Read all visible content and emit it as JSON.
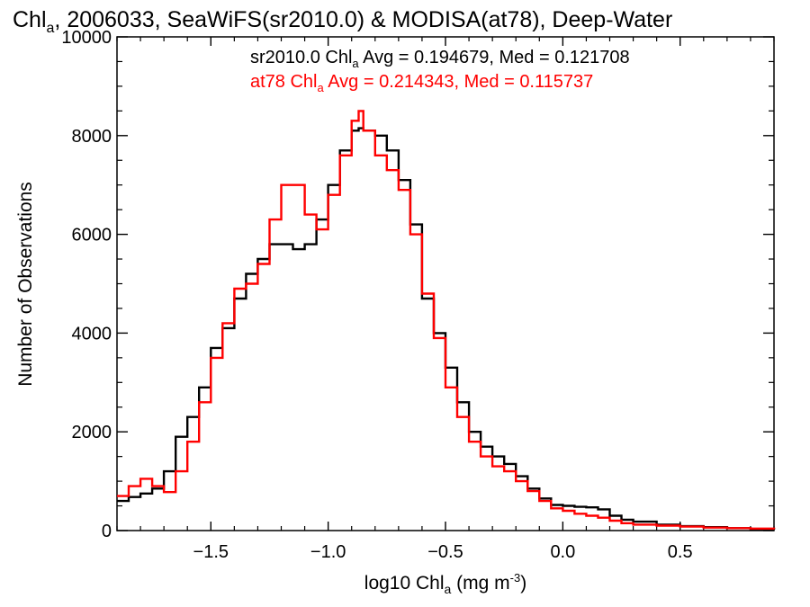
{
  "chart_data": {
    "type": "line",
    "title": {
      "prefix": "Chl",
      "sub": "a",
      "rest": ", 2006033, SeaWiFS(sr2010.0) & MODISA(at78), Deep-Water"
    },
    "xlabel": {
      "prefix": "log10 Chl",
      "sub": "a",
      "mid": " (mg m",
      "sup": "-3",
      "end": ")"
    },
    "ylabel": "Number of Observations",
    "xlim": [
      -1.9,
      0.9
    ],
    "ylim": [
      0,
      10000
    ],
    "x_ticks": [
      -1.5,
      -1.0,
      -0.5,
      0.0,
      0.5
    ],
    "x_tick_labels": [
      "−1.5",
      "−1.0",
      "−0.5",
      "0.0",
      "0.5"
    ],
    "y_ticks": [
      0,
      2000,
      4000,
      6000,
      8000,
      10000
    ],
    "y_tick_labels": [
      "0",
      "2000",
      "4000",
      "6000",
      "8000",
      "10000"
    ],
    "grid": false,
    "annotations": [
      {
        "prefix": "sr2010.0 Chl",
        "sub": "a",
        "rest": " Avg = 0.194679, Med = 0.121708",
        "color": "#000000"
      },
      {
        "prefix": "at78 Chl",
        "sub": "a",
        "rest": " Avg = 0.214343, Med = 0.115737",
        "color": "#ff0000"
      }
    ],
    "series": [
      {
        "color": "#000000",
        "x": [
          -1.9,
          -1.85,
          -1.8,
          -1.75,
          -1.7,
          -1.65,
          -1.6,
          -1.55,
          -1.5,
          -1.45,
          -1.4,
          -1.35,
          -1.3,
          -1.25,
          -1.2,
          -1.15,
          -1.1,
          -1.05,
          -1.0,
          -0.95,
          -0.9,
          -0.87,
          -0.85,
          -0.8,
          -0.75,
          -0.7,
          -0.65,
          -0.6,
          -0.55,
          -0.5,
          -0.45,
          -0.4,
          -0.35,
          -0.3,
          -0.25,
          -0.2,
          -0.15,
          -0.1,
          -0.05,
          0.0,
          0.05,
          0.1,
          0.15,
          0.2,
          0.25,
          0.3,
          0.4,
          0.5,
          0.6,
          0.7,
          0.8,
          0.9
        ],
        "y": [
          600,
          680,
          750,
          850,
          1200,
          1900,
          2300,
          2900,
          3700,
          4100,
          4700,
          5200,
          5500,
          5800,
          5800,
          5700,
          5800,
          6300,
          7000,
          7700,
          8100,
          8150,
          8100,
          8000,
          7700,
          7100,
          6200,
          4700,
          4000,
          3300,
          2600,
          2000,
          1700,
          1500,
          1350,
          1100,
          850,
          650,
          520,
          500,
          480,
          470,
          430,
          300,
          220,
          180,
          120,
          90,
          70,
          50,
          30,
          20
        ]
      },
      {
        "color": "#ff0000",
        "x": [
          -1.9,
          -1.85,
          -1.8,
          -1.75,
          -1.7,
          -1.65,
          -1.6,
          -1.55,
          -1.5,
          -1.45,
          -1.4,
          -1.35,
          -1.3,
          -1.25,
          -1.2,
          -1.15,
          -1.1,
          -1.05,
          -1.0,
          -0.95,
          -0.9,
          -0.87,
          -0.85,
          -0.8,
          -0.75,
          -0.7,
          -0.65,
          -0.6,
          -0.55,
          -0.5,
          -0.45,
          -0.4,
          -0.35,
          -0.3,
          -0.25,
          -0.2,
          -0.15,
          -0.1,
          -0.05,
          0.0,
          0.05,
          0.1,
          0.15,
          0.2,
          0.25,
          0.3,
          0.4,
          0.5,
          0.6,
          0.7,
          0.8,
          0.9
        ],
        "y": [
          700,
          900,
          1050,
          900,
          780,
          1200,
          1800,
          2600,
          3500,
          4200,
          4900,
          5000,
          5400,
          6300,
          7000,
          7000,
          6400,
          6100,
          6800,
          7600,
          8300,
          8500,
          8100,
          7600,
          7300,
          6900,
          6000,
          4800,
          3900,
          2900,
          2300,
          1800,
          1500,
          1300,
          1200,
          1000,
          800,
          600,
          450,
          400,
          340,
          300,
          260,
          200,
          150,
          120,
          100,
          80,
          60,
          50,
          40,
          25
        ]
      }
    ]
  }
}
